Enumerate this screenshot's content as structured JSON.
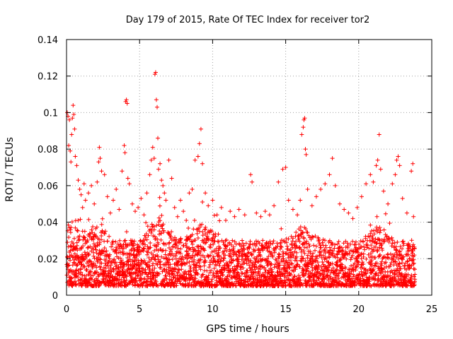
{
  "chart_data": {
    "type": "scatter",
    "title": "Day 179 of 2015, Rate Of TEC Index for receiver tor2",
    "xlabel": "GPS time / hours",
    "ylabel": "ROTI / TECUs",
    "xlim": [
      0,
      25
    ],
    "ylim": [
      0,
      0.14
    ],
    "x_ticks": [
      0,
      5,
      10,
      15,
      20,
      25
    ],
    "y_ticks": [
      0,
      0.02,
      0.04,
      0.06,
      0.08,
      0.1,
      0.12,
      0.14
    ],
    "x_tick_labels": [
      "0",
      "5",
      "10",
      "15",
      "20",
      "25"
    ],
    "y_tick_labels": [
      "0",
      "0.02",
      "0.04",
      "0.06",
      "0.08",
      "0.1",
      "0.12",
      "0.14"
    ],
    "grid": true,
    "marker": "+",
    "color": "#ff0000",
    "series": [
      {
        "name": "ROTI",
        "points": [
          [
            0.05,
            0.1
          ],
          [
            0.1,
            0.098
          ],
          [
            0.15,
            0.082
          ],
          [
            0.2,
            0.096
          ],
          [
            0.25,
            0.079
          ],
          [
            0.3,
            0.073
          ],
          [
            0.35,
            0.088
          ],
          [
            0.4,
            0.097
          ],
          [
            0.45,
            0.104
          ],
          [
            0.5,
            0.099
          ],
          [
            0.55,
            0.091
          ],
          [
            0.6,
            0.076
          ],
          [
            0.7,
            0.071
          ],
          [
            0.8,
            0.063
          ],
          [
            0.9,
            0.058
          ],
          [
            1.0,
            0.055
          ],
          [
            1.1,
            0.048
          ],
          [
            1.2,
            0.061
          ],
          [
            1.3,
            0.052
          ],
          [
            1.5,
            0.056
          ],
          [
            1.7,
            0.06
          ],
          [
            1.9,
            0.05
          ],
          [
            2.1,
            0.062
          ],
          [
            2.2,
            0.073
          ],
          [
            2.25,
            0.081
          ],
          [
            2.3,
            0.075
          ],
          [
            2.4,
            0.068
          ],
          [
            2.6,
            0.066
          ],
          [
            2.8,
            0.054
          ],
          [
            3.0,
            0.045
          ],
          [
            3.2,
            0.052
          ],
          [
            3.4,
            0.058
          ],
          [
            3.6,
            0.047
          ],
          [
            3.8,
            0.068
          ],
          [
            3.95,
            0.082
          ],
          [
            4.0,
            0.078
          ],
          [
            4.05,
            0.106
          ],
          [
            4.1,
            0.107
          ],
          [
            4.15,
            0.105
          ],
          [
            4.2,
            0.064
          ],
          [
            4.3,
            0.061
          ],
          [
            4.5,
            0.05
          ],
          [
            4.7,
            0.046
          ],
          [
            4.9,
            0.048
          ],
          [
            5.1,
            0.053
          ],
          [
            5.3,
            0.044
          ],
          [
            5.5,
            0.056
          ],
          [
            5.7,
            0.066
          ],
          [
            5.8,
            0.074
          ],
          [
            5.9,
            0.081
          ],
          [
            6.0,
            0.075
          ],
          [
            6.05,
            0.121
          ],
          [
            6.1,
            0.122
          ],
          [
            6.15,
            0.107
          ],
          [
            6.2,
            0.103
          ],
          [
            6.25,
            0.086
          ],
          [
            6.3,
            0.069
          ],
          [
            6.4,
            0.072
          ],
          [
            6.5,
            0.063
          ],
          [
            6.6,
            0.06
          ],
          [
            6.7,
            0.056
          ],
          [
            6.8,
            0.052
          ],
          [
            7.0,
            0.074
          ],
          [
            7.2,
            0.064
          ],
          [
            7.4,
            0.048
          ],
          [
            7.6,
            0.043
          ],
          [
            7.8,
            0.052
          ],
          [
            8.0,
            0.046
          ],
          [
            8.2,
            0.041
          ],
          [
            8.4,
            0.056
          ],
          [
            8.6,
            0.058
          ],
          [
            8.8,
            0.074
          ],
          [
            9.0,
            0.076
          ],
          [
            9.1,
            0.083
          ],
          [
            9.2,
            0.091
          ],
          [
            9.3,
            0.072
          ],
          [
            9.5,
            0.056
          ],
          [
            9.7,
            0.049
          ],
          [
            10.0,
            0.052
          ],
          [
            10.3,
            0.044
          ],
          [
            10.6,
            0.048
          ],
          [
            10.9,
            0.041
          ],
          [
            11.2,
            0.046
          ],
          [
            11.5,
            0.043
          ],
          [
            11.8,
            0.047
          ],
          [
            12.2,
            0.044
          ],
          [
            12.6,
            0.066
          ],
          [
            12.7,
            0.062
          ],
          [
            13.0,
            0.045
          ],
          [
            13.3,
            0.043
          ],
          [
            13.6,
            0.046
          ],
          [
            13.9,
            0.044
          ],
          [
            14.2,
            0.049
          ],
          [
            14.5,
            0.062
          ],
          [
            14.8,
            0.069
          ],
          [
            15.0,
            0.07
          ],
          [
            15.2,
            0.052
          ],
          [
            15.5,
            0.047
          ],
          [
            15.8,
            0.044
          ],
          [
            16.0,
            0.052
          ],
          [
            16.1,
            0.088
          ],
          [
            16.2,
            0.092
          ],
          [
            16.25,
            0.096
          ],
          [
            16.3,
            0.097
          ],
          [
            16.35,
            0.08
          ],
          [
            16.4,
            0.077
          ],
          [
            16.5,
            0.058
          ],
          [
            16.8,
            0.049
          ],
          [
            17.1,
            0.054
          ],
          [
            17.4,
            0.058
          ],
          [
            17.7,
            0.061
          ],
          [
            18.0,
            0.066
          ],
          [
            18.2,
            0.075
          ],
          [
            18.4,
            0.06
          ],
          [
            18.7,
            0.05
          ],
          [
            19.0,
            0.047
          ],
          [
            19.3,
            0.045
          ],
          [
            19.6,
            0.042
          ],
          [
            19.9,
            0.048
          ],
          [
            20.2,
            0.054
          ],
          [
            20.5,
            0.061
          ],
          [
            20.8,
            0.066
          ],
          [
            21.0,
            0.062
          ],
          [
            21.2,
            0.071
          ],
          [
            21.3,
            0.074
          ],
          [
            21.4,
            0.088
          ],
          [
            21.5,
            0.069
          ],
          [
            21.7,
            0.057
          ],
          [
            22.0,
            0.05
          ],
          [
            22.3,
            0.061
          ],
          [
            22.5,
            0.066
          ],
          [
            22.6,
            0.074
          ],
          [
            22.7,
            0.076
          ],
          [
            22.8,
            0.071
          ],
          [
            23.0,
            0.053
          ],
          [
            23.3,
            0.045
          ],
          [
            23.6,
            0.068
          ],
          [
            23.7,
            0.072
          ],
          [
            23.75,
            0.043
          ]
        ]
      }
    ]
  }
}
